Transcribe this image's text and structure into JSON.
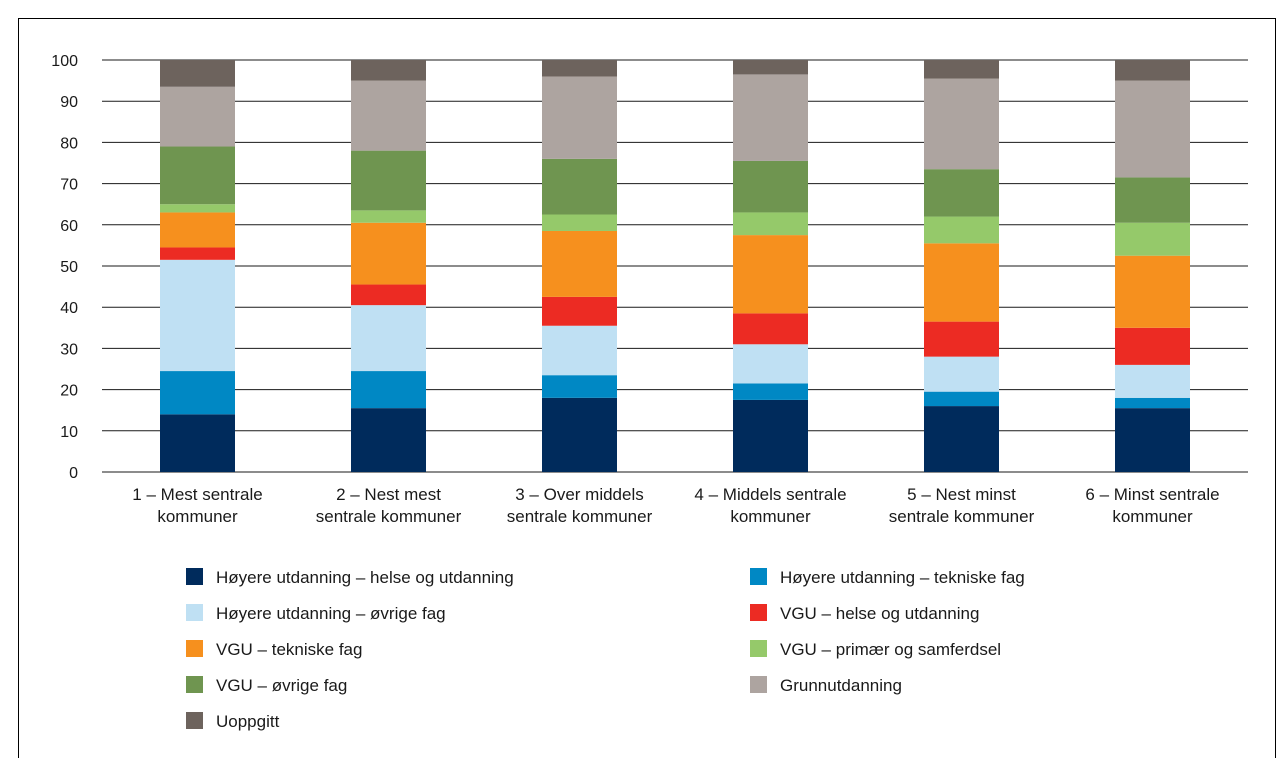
{
  "chart_data": {
    "type": "bar",
    "stacked": true,
    "ylim": [
      0,
      100
    ],
    "yticks": [
      "0",
      "10",
      "20",
      "30",
      "40",
      "50",
      "60",
      "70",
      "80",
      "90",
      "100"
    ],
    "grid": true,
    "legend_position": "bottom",
    "categories": [
      [
        "1 – Mest sentrale",
        "kommuner"
      ],
      [
        "2 – Nest mest",
        "sentrale kommuner"
      ],
      [
        "3 – Over middels",
        "sentrale kommuner"
      ],
      [
        "4 – Middels sentrale",
        "kommuner"
      ],
      [
        "5 – Nest minst",
        "sentrale kommuner"
      ],
      [
        "6 – Minst sentrale",
        "kommuner"
      ]
    ],
    "series": [
      {
        "name": "Høyere utdanning – helse og utdanning",
        "color": "#002B5C",
        "values": [
          14,
          15.5,
          18,
          17.5,
          16,
          15.5
        ]
      },
      {
        "name": "Høyere utdanning – tekniske fag",
        "color": "#0088C4",
        "values": [
          10.5,
          9,
          5.5,
          4,
          3.5,
          2.5
        ]
      },
      {
        "name": "Høyere utdanning – øvrige fag",
        "color": "#BFE0F3",
        "values": [
          27,
          16,
          12,
          9.5,
          8.5,
          8
        ]
      },
      {
        "name": "VGU – helse og utdanning",
        "color": "#EC2B23",
        "values": [
          3,
          5,
          7,
          7.5,
          8.5,
          9
        ]
      },
      {
        "name": "VGU – tekniske fag",
        "color": "#F6901E",
        "values": [
          8.5,
          15,
          16,
          19,
          19,
          17.5
        ]
      },
      {
        "name": "VGU – primær og samferdsel",
        "color": "#95C96A",
        "values": [
          2,
          3,
          4,
          5.5,
          6.5,
          8
        ]
      },
      {
        "name": "VGU – øvrige fag",
        "color": "#6F9550",
        "values": [
          14,
          14.5,
          13.5,
          12.5,
          11.5,
          11
        ]
      },
      {
        "name": "Grunnutdanning",
        "color": "#ADA4A0",
        "values": [
          14.5,
          17,
          20,
          21,
          22,
          23.5
        ]
      },
      {
        "name": "Uoppgitt",
        "color": "#6D635D",
        "values": [
          6.5,
          5,
          4,
          3.5,
          4.5,
          5
        ]
      }
    ]
  }
}
